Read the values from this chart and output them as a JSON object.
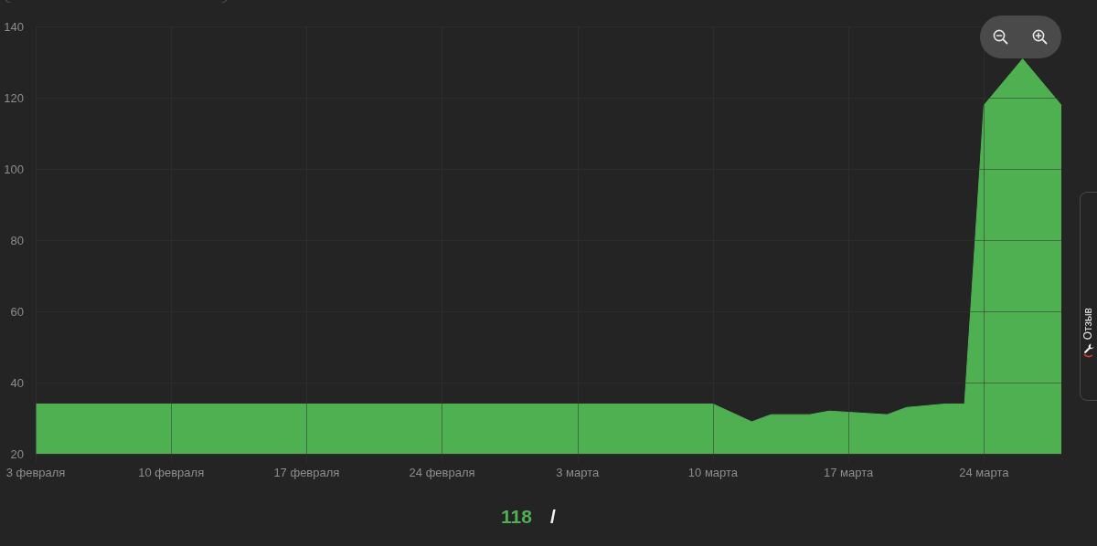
{
  "chart_data": {
    "type": "area",
    "x": [
      "--02-03",
      "--03-10",
      "--03-12",
      "--03-13",
      "--03-15",
      "--03-16",
      "--03-19",
      "--03-20",
      "--03-22",
      "--03-23",
      "--03-24",
      "--03-26",
      "--03-28"
    ],
    "values": [
      34,
      34,
      29,
      31,
      31,
      32,
      31,
      33,
      34,
      34,
      118,
      131,
      118
    ],
    "color": "#4fb051",
    "xlim": [
      "--02-03",
      "--03-28"
    ],
    "xticks": [
      {
        "value": "--02-03",
        "label": "3 февраля"
      },
      {
        "value": "--02-10",
        "label": "10 февраля"
      },
      {
        "value": "--02-17",
        "label": "17 февраля"
      },
      {
        "value": "--02-24",
        "label": "24 февраля"
      },
      {
        "value": "--03-03",
        "label": "3 марта"
      },
      {
        "value": "--03-10",
        "label": "10 марта"
      },
      {
        "value": "--03-17",
        "label": "17 марта"
      },
      {
        "value": "--03-24",
        "label": "24 марта"
      }
    ],
    "ylim": [
      20,
      140
    ],
    "yticks": [
      20,
      40,
      60,
      80,
      100,
      120,
      140
    ],
    "grid": true,
    "marker": "none",
    "annotations": [
      "118",
      "/",
      "Отзыв"
    ]
  }
}
